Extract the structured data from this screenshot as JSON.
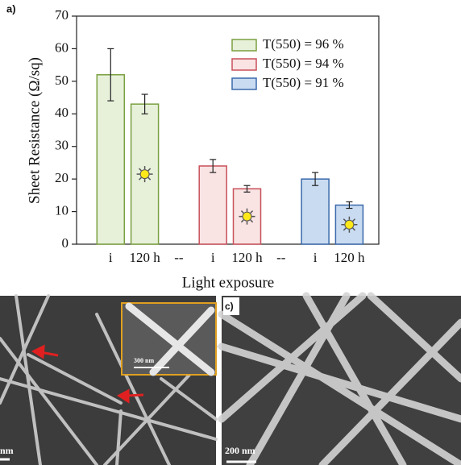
{
  "chart_data": {
    "type": "bar",
    "label": "a)",
    "y_label": "Sheet Resistance (Ω/sq)",
    "x_label": "Light exposure",
    "categories": [
      "i",
      "120 h",
      "--",
      "i",
      "120 h",
      "--",
      "i",
      "120 h"
    ],
    "series": [
      {
        "name": "T(550) = 96 %",
        "color": "#7aa040",
        "fill": "#e7f1da",
        "values": [
          52,
          43,
          null,
          null,
          null,
          null,
          null,
          null
        ],
        "errors": [
          8,
          3,
          null,
          null,
          null,
          null,
          null,
          null
        ]
      },
      {
        "name": "T(550) = 94 %",
        "color": "#c8505a",
        "fill": "#f9e3e3",
        "values": [
          null,
          null,
          null,
          24,
          17,
          null,
          null,
          null
        ],
        "errors": [
          null,
          null,
          null,
          2,
          1,
          null,
          null,
          null
        ]
      },
      {
        "name": "T(550) = 91 %",
        "color": "#3a6aaa",
        "fill": "#c9dbf1",
        "values": [
          null,
          null,
          null,
          null,
          null,
          null,
          20,
          12
        ],
        "errors": [
          null,
          null,
          null,
          null,
          null,
          null,
          2,
          1
        ]
      }
    ],
    "ylim": [
      0,
      70
    ],
    "yticks": [
      0,
      10,
      20,
      30,
      40,
      50,
      60,
      70
    ]
  },
  "panels": {
    "b_scale": "nm",
    "b_inset_scale": "300 nm",
    "c_label": "c)",
    "c_scale": "200 nm"
  }
}
